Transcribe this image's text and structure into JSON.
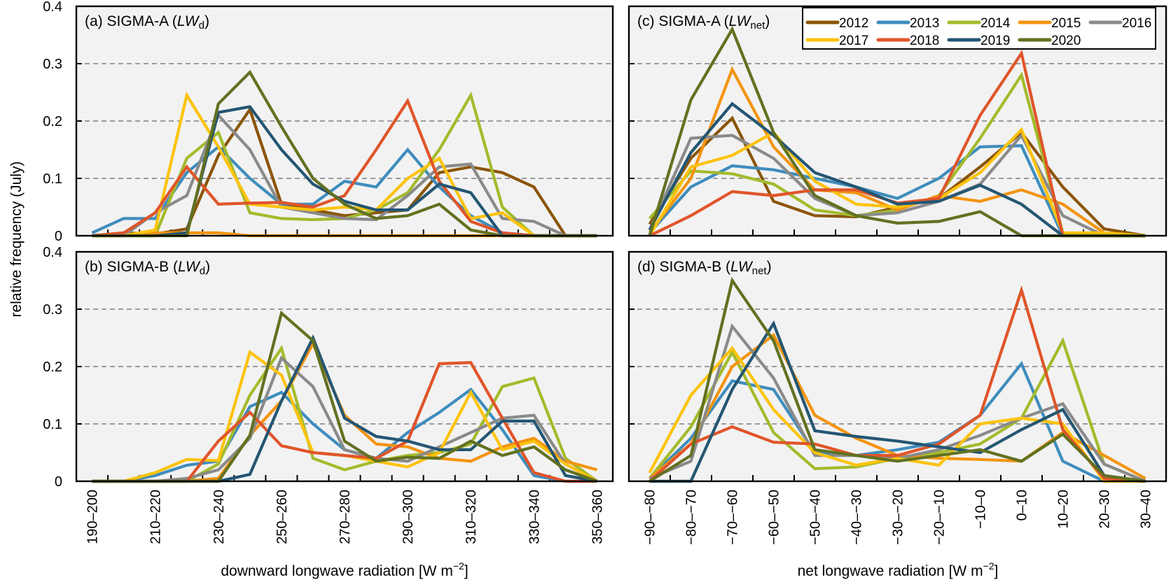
{
  "figure": {
    "ylabel": "relative frequency (July)",
    "xlabel_left": "downward longwave radiation [W m",
    "xlabel_right": "net longwave radiation [W m",
    "xlabel_unit_exp": "−2",
    "xlabel_close": "]"
  },
  "legend": {
    "placement": "top-right of panel (c)",
    "entries": [
      {
        "year": "2012",
        "color": "#8B5509"
      },
      {
        "year": "2013",
        "color": "#3F8DBD"
      },
      {
        "year": "2014",
        "color": "#A3BB2B"
      },
      {
        "year": "2015",
        "color": "#F39410"
      },
      {
        "year": "2016",
        "color": "#8A8A8A"
      },
      {
        "year": "2017",
        "color": "#FCC30C"
      },
      {
        "year": "2018",
        "color": "#E0552A"
      },
      {
        "year": "2019",
        "color": "#245673"
      },
      {
        "year": "2020",
        "color": "#627120"
      }
    ]
  },
  "chart_data": [
    {
      "id": "a",
      "type": "line",
      "title_prefix": "(a) SIGMA-A (",
      "title_var": "LW",
      "title_sub": "d",
      "title_suffix": ")",
      "xlabel": "downward longwave radiation [W m−2]",
      "ylabel": "relative frequency (July)",
      "ylim": [
        0,
        0.4
      ],
      "yticks": [
        "0",
        "0.1",
        "0.2",
        "0.3",
        "0.4"
      ],
      "grid": "dashed horizontal at 0.1, 0.2, 0.3",
      "categories": [
        "190–200",
        "200–210",
        "210–220",
        "220–230",
        "230–240",
        "240–250",
        "250–260",
        "260–270",
        "270–280",
        "280–290",
        "290–300",
        "300–310",
        "310–320",
        "320–330",
        "330–340",
        "340–350",
        "350–360"
      ],
      "tick_labels_shown": [
        "190–200",
        "",
        "210–220",
        "",
        "230–240",
        "",
        "250–260",
        "",
        "270–280",
        "",
        "290–300",
        "",
        "310–320",
        "",
        "330–340",
        "",
        "350–360"
      ],
      "series": [
        {
          "name": "2012",
          "values": [
            0,
            0.005,
            0.003,
            0.012,
            0.14,
            0.22,
            0.055,
            0.045,
            0.035,
            0.04,
            0.045,
            0.11,
            0.12,
            0.11,
            0.085,
            0,
            0
          ]
        },
        {
          "name": "2013",
          "values": [
            0.005,
            0.03,
            0.03,
            0.11,
            0.155,
            0.1,
            0.055,
            0.055,
            0.095,
            0.085,
            0.15,
            0.085,
            0.035,
            0.005,
            0,
            0,
            0
          ]
        },
        {
          "name": "2014",
          "values": [
            0,
            0,
            0,
            0.135,
            0.18,
            0.04,
            0.03,
            0.028,
            0.03,
            0.045,
            0.075,
            0.15,
            0.245,
            0.05,
            0,
            0,
            0
          ]
        },
        {
          "name": "2015",
          "values": [
            0,
            0,
            0.005,
            0.005,
            0.005,
            0,
            0,
            0,
            0,
            0,
            0,
            0,
            0,
            0,
            0,
            0,
            0
          ]
        },
        {
          "name": "2016",
          "values": [
            0,
            0,
            0.04,
            0.07,
            0.21,
            0.15,
            0.05,
            0.04,
            0.03,
            0.028,
            0.07,
            0.12,
            0.125,
            0.03,
            0.025,
            0,
            0
          ]
        },
        {
          "name": "2017",
          "values": [
            0,
            0,
            0.01,
            0.245,
            0.155,
            0.055,
            0.05,
            0.045,
            0.05,
            0.045,
            0.1,
            0.135,
            0.03,
            0.04,
            0,
            0,
            0
          ]
        },
        {
          "name": "2018",
          "values": [
            0,
            0.005,
            0.04,
            0.12,
            0.055,
            0.057,
            0.058,
            0.05,
            0.07,
            0.15,
            0.235,
            0.095,
            0.025,
            0.005,
            0,
            0,
            0
          ]
        },
        {
          "name": "2019",
          "values": [
            0,
            0,
            0,
            0.005,
            0.215,
            0.225,
            0.15,
            0.09,
            0.06,
            0.045,
            0.045,
            0.09,
            0.075,
            0,
            0,
            0,
            0
          ]
        },
        {
          "name": "2020",
          "values": [
            0,
            0,
            0,
            0,
            0.23,
            0.285,
            0.19,
            0.1,
            0.055,
            0.03,
            0.035,
            0.055,
            0.01,
            0,
            0,
            0,
            0
          ]
        }
      ]
    },
    {
      "id": "b",
      "type": "line",
      "title_prefix": "(b) SIGMA-B (",
      "title_var": "LW",
      "title_sub": "d",
      "title_suffix": ")",
      "xlabel": "downward longwave radiation [W m−2]",
      "ylabel": "relative frequency (July)",
      "ylim": [
        0,
        0.4
      ],
      "yticks": [
        "0",
        "0.1",
        "0.2",
        "0.3",
        "0.4"
      ],
      "grid": "dashed horizontal at 0.1, 0.2, 0.3",
      "categories": [
        "190–200",
        "200–210",
        "210–220",
        "220–230",
        "230–240",
        "240–250",
        "250–260",
        "260–270",
        "270–280",
        "280–290",
        "290–300",
        "300–310",
        "310–320",
        "320–330",
        "330–340",
        "340–350",
        "350–360"
      ],
      "tick_labels_shown": [
        "190–200",
        "",
        "210–220",
        "",
        "230–240",
        "",
        "250–260",
        "",
        "270–280",
        "",
        "290–300",
        "",
        "310–320",
        "",
        "330–340",
        "",
        "350–360"
      ],
      "series": [
        {
          "name": "2012",
          "values": [
            0,
            0,
            0,
            0,
            0,
            0,
            0,
            0,
            0,
            0,
            0,
            0,
            0,
            0,
            0,
            0,
            0
          ]
        },
        {
          "name": "2013",
          "values": [
            0,
            0,
            0.01,
            0.028,
            0.035,
            0.13,
            0.155,
            0.1,
            0.055,
            0.04,
            0.085,
            0.12,
            0.16,
            0.09,
            0.01,
            0,
            0
          ]
        },
        {
          "name": "2014",
          "values": [
            0,
            0,
            0,
            0,
            0.03,
            0.15,
            0.232,
            0.04,
            0.02,
            0.035,
            0.045,
            0.05,
            0.065,
            0.165,
            0.18,
            0.04,
            0
          ]
        },
        {
          "name": "2015",
          "values": [
            0,
            0,
            0,
            0,
            0.005,
            0.08,
            0.14,
            0.24,
            0.115,
            0.065,
            0.06,
            0.04,
            0.035,
            0.06,
            0.075,
            0.035,
            0.02
          ]
        },
        {
          "name": "2016",
          "values": [
            0,
            0,
            0,
            0.005,
            0.02,
            0.075,
            0.215,
            0.165,
            0.055,
            0.04,
            0.035,
            0.06,
            0.085,
            0.11,
            0.115,
            0.03,
            0
          ]
        },
        {
          "name": "2017",
          "values": [
            0,
            0,
            0.015,
            0.038,
            0.036,
            0.225,
            0.185,
            0.05,
            0.045,
            0.035,
            0.025,
            0.05,
            0.155,
            0.055,
            0.07,
            0.03,
            0
          ]
        },
        {
          "name": "2018",
          "values": [
            0,
            0,
            0,
            0,
            0.07,
            0.12,
            0.062,
            0.05,
            0.045,
            0.04,
            0.07,
            0.205,
            0.207,
            0.11,
            0.015,
            0,
            0
          ]
        },
        {
          "name": "2019",
          "values": [
            0,
            0,
            0,
            0,
            0,
            0.012,
            0.14,
            0.25,
            0.11,
            0.078,
            0.07,
            0.055,
            0.055,
            0.105,
            0.105,
            0.01,
            0
          ]
        },
        {
          "name": "2020",
          "values": [
            0,
            0,
            0,
            0,
            0,
            0.08,
            0.293,
            0.245,
            0.07,
            0.035,
            0.042,
            0.04,
            0.07,
            0.045,
            0.06,
            0.02,
            0
          ]
        }
      ]
    },
    {
      "id": "c",
      "type": "line",
      "title_prefix": "(c) SIGMA-A (",
      "title_var": "LW",
      "title_sub": "net",
      "title_suffix": ")",
      "xlabel": "net longwave radiation [W m−2]",
      "ylabel": "relative frequency (July)",
      "ylim": [
        0,
        0.4
      ],
      "yticks": [
        "0",
        "0.1",
        "0.2",
        "0.3",
        "0.4"
      ],
      "grid": "dashed horizontal at 0.1, 0.2, 0.3",
      "categories": [
        "−90–−80",
        "−80–−70",
        "−70–−60",
        "−60–−50",
        "−50–−40",
        "−40–−30",
        "−30–−20",
        "−20–−10",
        "−10–0",
        "0–10",
        "10–20",
        "20–30",
        "30–40"
      ],
      "tick_labels_shown": [
        "−90–−80",
        "−80–−70",
        "−70–−60",
        "−60–−50",
        "−50–−40",
        "−40–−30",
        "−30–−20",
        "−20–−10",
        "−10–0",
        "0–10",
        "10–20",
        "20–30",
        "30–40"
      ],
      "series": [
        {
          "name": "2012",
          "values": [
            0.02,
            0.135,
            0.205,
            0.06,
            0.035,
            0.033,
            0.05,
            0.065,
            0.12,
            0.18,
            0.085,
            0.012,
            0
          ]
        },
        {
          "name": "2013",
          "values": [
            0.005,
            0.085,
            0.122,
            0.115,
            0.1,
            0.085,
            0.065,
            0.1,
            0.155,
            0.157,
            0,
            0,
            0
          ]
        },
        {
          "name": "2014",
          "values": [
            0.03,
            0.113,
            0.108,
            0.09,
            0.045,
            0.035,
            0.045,
            0.07,
            0.17,
            0.28,
            0.005,
            0,
            0
          ]
        },
        {
          "name": "2015",
          "values": [
            0.005,
            0.1,
            0.29,
            0.155,
            0.08,
            0.075,
            0.045,
            0.07,
            0.06,
            0.08,
            0.055,
            0.005,
            0
          ]
        },
        {
          "name": "2016",
          "values": [
            0.01,
            0.17,
            0.175,
            0.135,
            0.065,
            0.035,
            0.04,
            0.06,
            0.09,
            0.175,
            0.035,
            0,
            0
          ]
        },
        {
          "name": "2017",
          "values": [
            0,
            0.12,
            0.14,
            0.18,
            0.095,
            0.055,
            0.05,
            0.065,
            0.11,
            0.185,
            0.005,
            0.005,
            0
          ]
        },
        {
          "name": "2018",
          "values": [
            0,
            0.035,
            0.077,
            0.07,
            0.08,
            0.08,
            0.057,
            0.065,
            0.21,
            0.318,
            0,
            0,
            0
          ]
        },
        {
          "name": "2019",
          "values": [
            0.01,
            0.145,
            0.23,
            0.175,
            0.11,
            0.085,
            0.055,
            0.06,
            0.088,
            0.055,
            0,
            0,
            0
          ]
        },
        {
          "name": "2020",
          "values": [
            0,
            0.237,
            0.36,
            0.18,
            0.07,
            0.035,
            0.022,
            0.025,
            0.042,
            0,
            0,
            0,
            0
          ]
        }
      ]
    },
    {
      "id": "d",
      "type": "line",
      "title_prefix": "(d) SIGMA-B (",
      "title_var": "LW",
      "title_sub": "net",
      "title_suffix": ")",
      "xlabel": "net longwave radiation [W m−2]",
      "ylabel": "relative frequency (July)",
      "ylim": [
        0,
        0.4
      ],
      "yticks": [
        "0",
        "0.1",
        "0.2",
        "0.3",
        "0.4"
      ],
      "grid": "dashed horizontal at 0.1, 0.2, 0.3",
      "categories": [
        "−90–−80",
        "−80–−70",
        "−70–−60",
        "−60–−50",
        "−50–−40",
        "−40–−30",
        "−30–−20",
        "−20–−10",
        "−10–0",
        "0–10",
        "10–20",
        "20–30",
        "30–40"
      ],
      "tick_labels_shown": [
        "−90–−80",
        "−80–−70",
        "−70–−60",
        "−60–−50",
        "−50–−40",
        "−40–−30",
        "−30–−20",
        "−20–−10",
        "−10–0",
        "0–10",
        "10–20",
        "20–30",
        "30–40"
      ],
      "series": [
        {
          "name": "2012",
          "values": [
            0,
            0,
            0,
            0,
            0,
            0,
            0,
            0,
            0,
            0,
            0,
            0,
            0
          ]
        },
        {
          "name": "2013",
          "values": [
            0.005,
            0.075,
            0.175,
            0.16,
            0.05,
            0.045,
            0.055,
            0.068,
            0.115,
            0.205,
            0.035,
            0,
            0
          ]
        },
        {
          "name": "2014",
          "values": [
            0.005,
            0.095,
            0.225,
            0.085,
            0.022,
            0.025,
            0.04,
            0.05,
            0.065,
            0.11,
            0.245,
            0.03,
            0
          ]
        },
        {
          "name": "2015",
          "values": [
            0.005,
            0.065,
            0.2,
            0.255,
            0.115,
            0.075,
            0.045,
            0.04,
            0.038,
            0.035,
            0.085,
            0.045,
            0.005
          ]
        },
        {
          "name": "2016",
          "values": [
            0.005,
            0.035,
            0.27,
            0.18,
            0.045,
            0.045,
            0.04,
            0.055,
            0.08,
            0.11,
            0.135,
            0.03,
            0
          ]
        },
        {
          "name": "2017",
          "values": [
            0.015,
            0.15,
            0.232,
            0.125,
            0.05,
            0.028,
            0.04,
            0.028,
            0.1,
            0.11,
            0.1,
            0,
            0
          ]
        },
        {
          "name": "2018",
          "values": [
            0,
            0.065,
            0.095,
            0.068,
            0.065,
            0.045,
            0.045,
            0.065,
            0.115,
            0.333,
            0.09,
            0.005,
            0
          ]
        },
        {
          "name": "2019",
          "values": [
            0,
            0,
            0.16,
            0.275,
            0.088,
            0.078,
            0.07,
            0.06,
            0.05,
            0.09,
            0.125,
            0.01,
            0
          ]
        },
        {
          "name": "2020",
          "values": [
            0,
            0.045,
            0.35,
            0.245,
            0.055,
            0.045,
            0.035,
            0.045,
            0.055,
            0.035,
            0.082,
            0.01,
            0
          ]
        }
      ]
    }
  ]
}
